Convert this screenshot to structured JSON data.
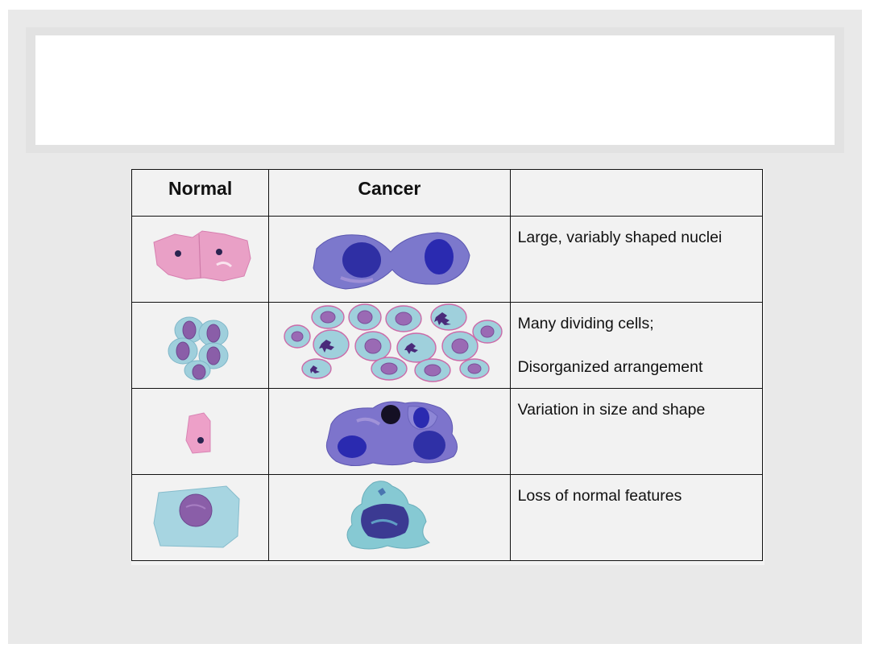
{
  "slide": {
    "title": ""
  },
  "table": {
    "headers": [
      "Normal",
      "Cancer",
      ""
    ],
    "rows": [
      {
        "normal_image": "normal-squamous-cells-pink",
        "cancer_image": "cancer-binucleate-cells-dark-blue",
        "feature_lines": [
          "Large, variably shaped nuclei"
        ]
      },
      {
        "normal_image": "normal-cell-cluster",
        "cancer_image": "cancer-dividing-cell-sheet",
        "feature_lines": [
          "Many dividing cells;",
          "Disorganized arrangement"
        ]
      },
      {
        "normal_image": "normal-single-pink-cell",
        "cancer_image": "cancer-irregular-cell-cluster",
        "feature_lines": [
          "Variation in size and shape"
        ]
      },
      {
        "normal_image": "normal-cell-with-round-nucleus",
        "cancer_image": "cancer-disrupted-cell-mass",
        "feature_lines": [
          "Loss of normal features"
        ]
      }
    ]
  },
  "colors": {
    "normal_cytoplasm_pink": "#e58fbf",
    "normal_cytoplasm_cyan": "#8fc7d6",
    "nucleus_purple": "#8a5ea8",
    "cancer_cytoplasm": "#7b78c9",
    "cancer_nucleus": "#2a2aa0"
  }
}
